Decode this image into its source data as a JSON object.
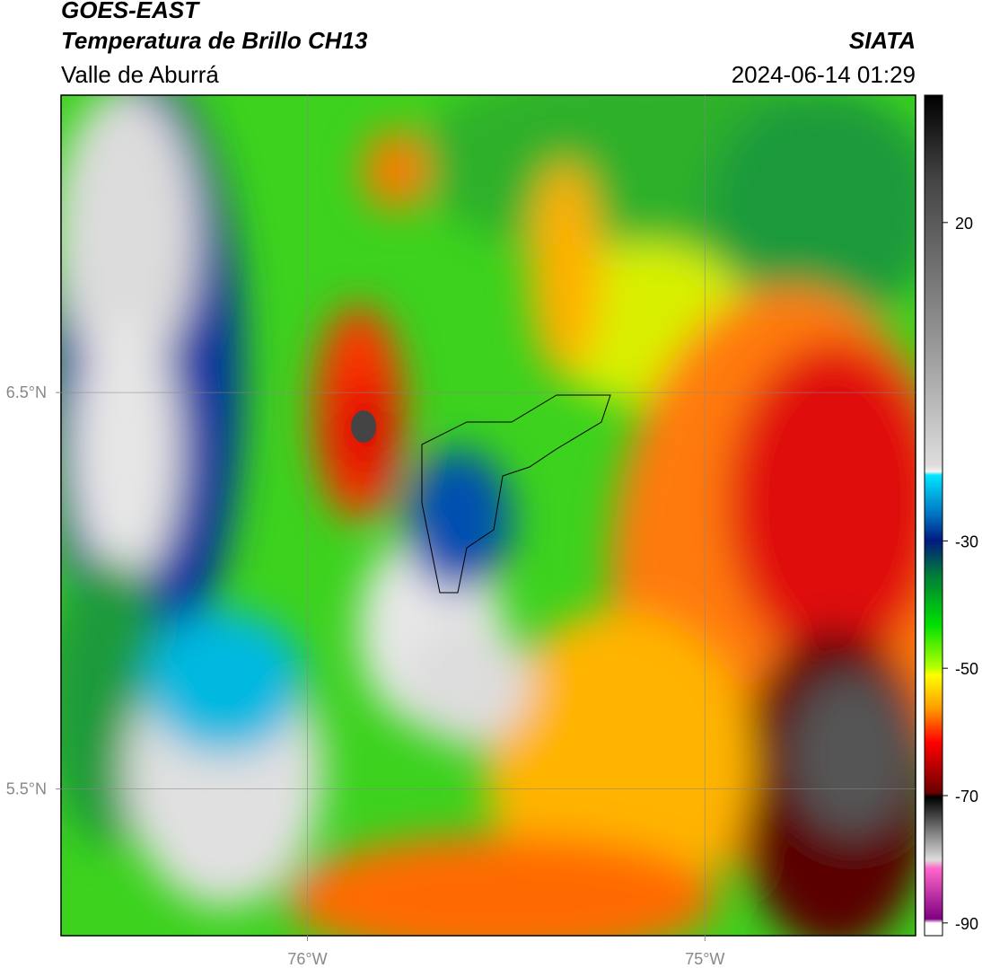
{
  "header": {
    "title": "GOES-EAST",
    "subtitle": "Temperatura de Brillo CH13",
    "region": "Valle de Aburrá",
    "source": "SIATA",
    "timestamp": "2024-06-14 01:29"
  },
  "map": {
    "xlim": [
      -76.62,
      -74.47
    ],
    "ylim": [
      5.13,
      7.25
    ],
    "xticks": [
      {
        "value": -76,
        "label": "76°W"
      },
      {
        "value": -75,
        "label": "75°W"
      }
    ],
    "yticks": [
      {
        "value": 6.5,
        "label": "6.5°N"
      },
      {
        "value": 5.5,
        "label": "5.5°N"
      }
    ],
    "grid": true
  },
  "colorbar": {
    "lim": [
      -92,
      40
    ],
    "ticks": [
      20,
      -30,
      -50,
      -70,
      -90
    ]
  }
}
